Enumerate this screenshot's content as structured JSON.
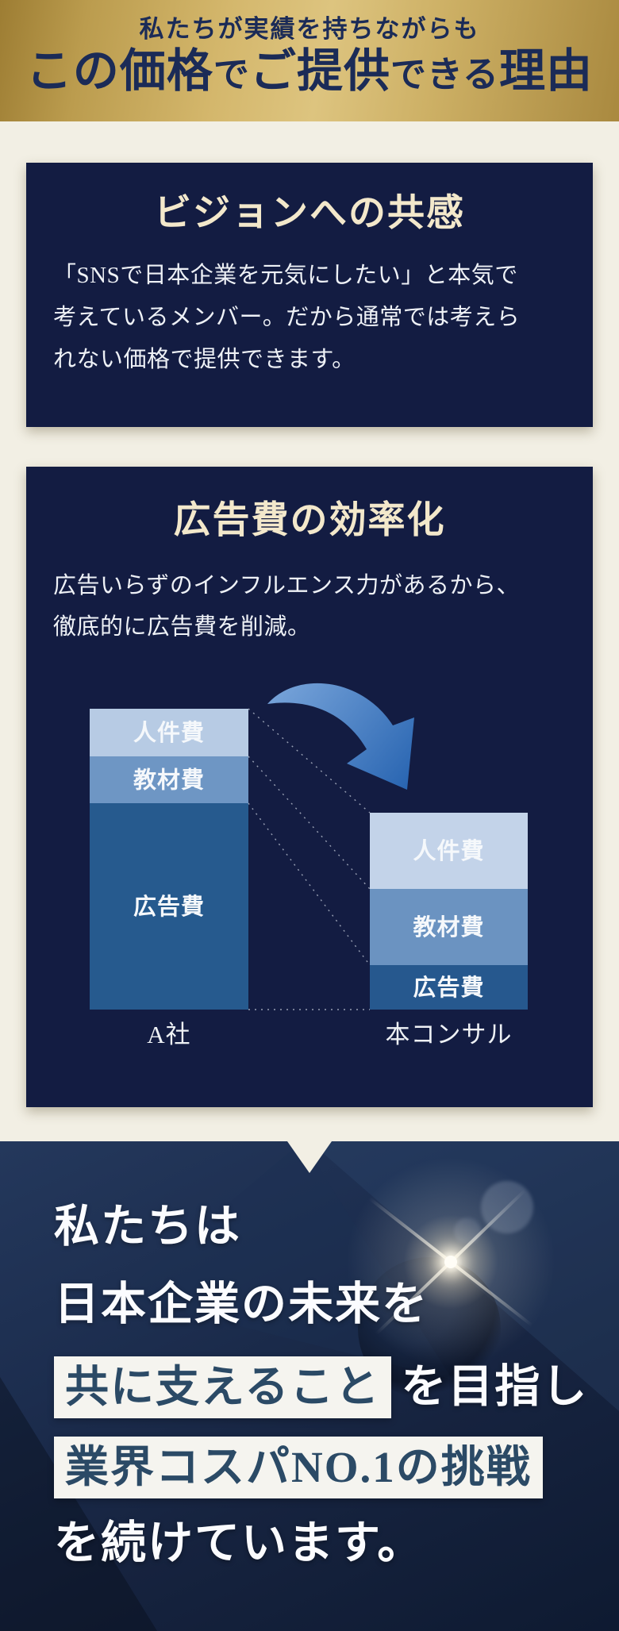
{
  "header": {
    "line1": "私たちが実績を持ちながらも",
    "line2_segments": [
      {
        "t": "この価格"
      },
      {
        "t": "で",
        "small": true
      },
      {
        "t": "ご提供"
      },
      {
        "t": "できる",
        "small": true
      },
      {
        "t": "理由"
      }
    ]
  },
  "cards": [
    {
      "title": "ビジョンへの共感",
      "body_lines": [
        "「SNSで日本企業を元気にしたい」と本気で",
        "考えているメンバー。だから通常では考えら",
        "れない価格で提供できます。"
      ]
    },
    {
      "title": "広告費の効率化",
      "body_lines": [
        "広告いらずのインフルエンス力があるから、",
        "徹底的に広告費を削減。"
      ]
    }
  ],
  "chart_data": {
    "type": "bar",
    "stacked": true,
    "categories": [
      "A社",
      "本コンサル"
    ],
    "series": [
      {
        "name": "人件費",
        "values": [
          60,
          96
        ],
        "colors": [
          "#b7cbe4",
          "#c3d3e9"
        ]
      },
      {
        "name": "教材費",
        "values": [
          59,
          96
        ],
        "colors": [
          "#6e96c4",
          "#6b93c1"
        ]
      },
      {
        "name": "広告費",
        "values": [
          260,
          56
        ],
        "colors": [
          "#265a8e",
          "#26588e"
        ]
      }
    ],
    "unit": "relative cost (pixel height)",
    "legend_position": "in-bar labels",
    "grid": false
  },
  "bottom": {
    "line1": "私たちは",
    "line2": "日本企業の未来を",
    "line3_highlight": "共に支えること",
    "line3_suffix": "を目指し",
    "line4_highlight": "業界コスパNO.1の挑戦",
    "line5": "を続けています。"
  },
  "colors": {
    "gold_dark": "#9d7d33",
    "gold_light": "#ddc47f",
    "header_text_navy": "#1b2b57",
    "card_navy": "#131c42",
    "title_cream": "#f3e8cb",
    "page_cream": "#f2efe4",
    "highlight_box_bg": "#f5f4ef",
    "highlight_box_text": "#2b4a66",
    "arrow_gradient": [
      "#7ea9dd",
      "#2a66b2"
    ],
    "dotted_connector": "#dfe6f0"
  }
}
